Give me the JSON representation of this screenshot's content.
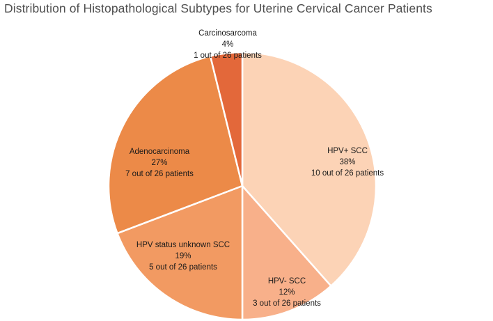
{
  "chart_data": {
    "type": "pie",
    "title": "Distribution of Histopathological Subtypes for Uterine Cervical Cancer Patients",
    "slices": [
      {
        "name": "HPV+ SCC",
        "percent_label": "38%",
        "count_label": "10 out of 26 patients",
        "value": 10,
        "color": "#fcd3b6"
      },
      {
        "name": "HPV- SCC",
        "percent_label": "12%",
        "count_label": "3 out of 26 patients",
        "value": 3,
        "color": "#f8b08a"
      },
      {
        "name": "HPV status unknown SCC",
        "percent_label": "19%",
        "count_label": "5 out of 26 patients",
        "value": 5,
        "color": "#f29a62"
      },
      {
        "name": "Adenocarcinoma",
        "percent_label": "27%",
        "count_label": "7 out of 26 patients",
        "value": 7,
        "color": "#ec8a48"
      },
      {
        "name": "Carcinosarcoma",
        "percent_label": "4%",
        "count_label": "1 out of 26 patients",
        "value": 1,
        "color": "#e3683a"
      }
    ]
  }
}
